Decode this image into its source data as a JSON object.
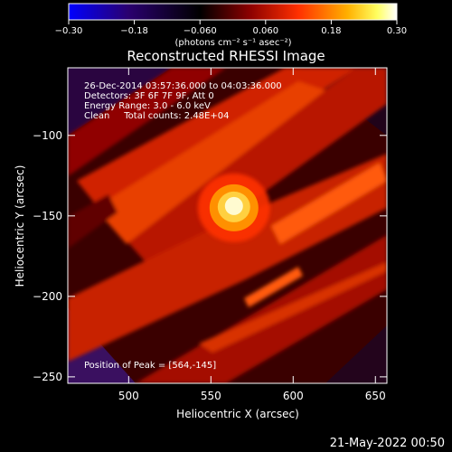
{
  "chart_data": {
    "type": "heatmap",
    "title": "Reconstructed RHESSI Image",
    "xlabel": "Heliocentric X (arcsec)",
    "ylabel": "Heliocentric Y (arcsec)",
    "xlim": [
      463,
      657
    ],
    "ylim": [
      -254,
      -58
    ],
    "x_ticks": [
      500,
      550,
      600,
      650
    ],
    "y_ticks": [
      -100,
      -150,
      -200,
      -250
    ],
    "x_tick_labels": [
      "500",
      "550",
      "600",
      "650"
    ],
    "y_tick_labels": [
      "−100",
      "−150",
      "−200",
      "−250"
    ],
    "colorbar": {
      "range": [
        -0.3,
        0.3
      ],
      "ticks": [
        "−0.30",
        "−0.18",
        "−0.060",
        "0.060",
        "0.18",
        "0.30"
      ],
      "unit_label": "(photons cm⁻² s⁻¹ asec⁻²)",
      "colors": [
        "#0000ff",
        "#2a0070",
        "#000000",
        "#8a0000",
        "#ff3000",
        "#ffb000",
        "#ffff60",
        "#ffffff"
      ]
    },
    "peak": {
      "x": 564,
      "y": -145
    },
    "annotations": [
      "26-Dec-2014 03:57:36.000 to 04:03:36.000",
      "Detectors: 3F 6F 7F 9F, Att 0",
      "Energy Range: 3.0 - 6.0 keV",
      "Clean     Total counts: 2.48E+04"
    ],
    "peak_label": "Position of Peak = [564,-145]"
  },
  "footer": {
    "date": "21-May-2022 00:50"
  }
}
